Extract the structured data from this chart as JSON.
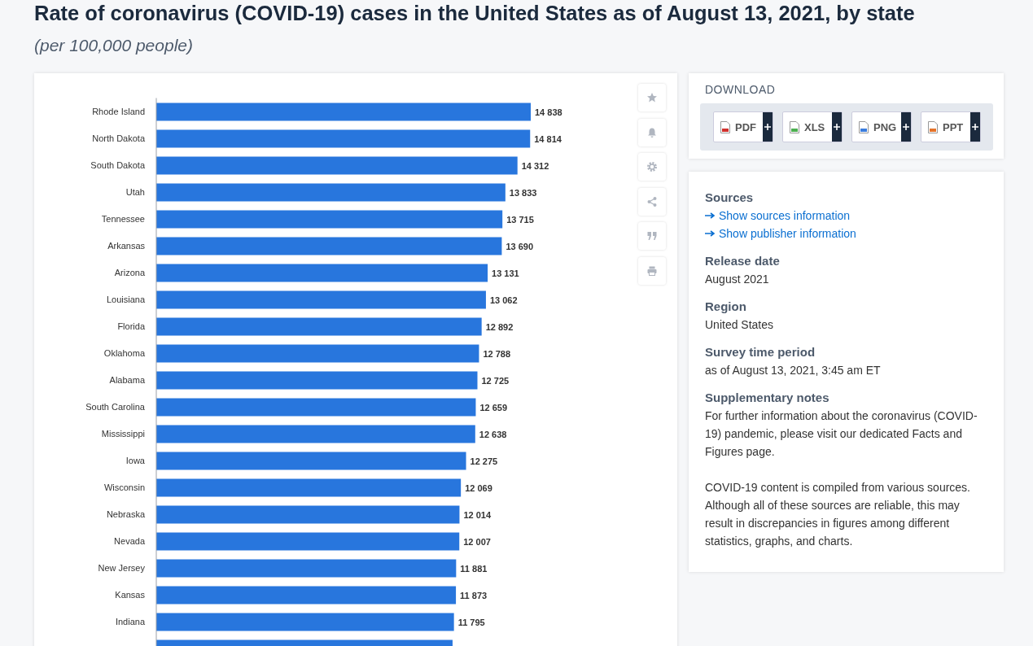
{
  "chart_data": [
    {
      "type": "bar",
      "orientation": "horizontal",
      "title": "Rate of coronavirus (COVID-19) cases in the United States as of August 13, 2021, by state",
      "subtitle": "(per 100,000 people)",
      "categories": [
        "Rhode Island",
        "North Dakota",
        "South Dakota",
        "Utah",
        "Tennessee",
        "Arkansas",
        "Arizona",
        "Louisiana",
        "Florida",
        "Oklahoma",
        "Alabama",
        "South Carolina",
        "Mississippi",
        "Iowa",
        "Wisconsin",
        "Nebraska",
        "Nevada",
        "New Jersey",
        "Kansas",
        "Indiana",
        null
      ],
      "values": [
        14838,
        14814,
        14312,
        13833,
        13715,
        13690,
        13131,
        13062,
        12892,
        12788,
        12725,
        12659,
        12638,
        12275,
        12069,
        12014,
        12007,
        11881,
        11873,
        11795,
        11740
      ],
      "value_labels": [
        "14 838",
        "14 814",
        "14 312",
        "13 833",
        "13 715",
        "13 690",
        "13 131",
        "13 062",
        "12 892",
        "12 788",
        "12 725",
        "12 659",
        "12 638",
        "12 275",
        "12 069",
        "12 014",
        "12 007",
        "11 881",
        "11 873",
        "11 795",
        null
      ],
      "color": "#2876dd",
      "tick_labels": "y"
    },
    {
      "type": "other",
      "title": "DOWNLOAD",
      "annotations": [
        "PDF",
        "XLS",
        "PNG",
        "PPT",
        "Sources",
        "Show sources information",
        "Show publisher information",
        "Release date",
        "August 2021",
        "Region",
        "United States",
        "Survey time period",
        "as of August 13, 2021, 3:45 am ET",
        "Supplementary notes",
        "For further information about the coronavirus (COVID-19) pandemic, please visit our dedicated Facts and Figures page.",
        "COVID-19 content is compiled from various sources. Although all of these sources are reliable, this may result in discrepancies in figures among different statistics, graphs, and charts."
      ]
    }
  ]
}
